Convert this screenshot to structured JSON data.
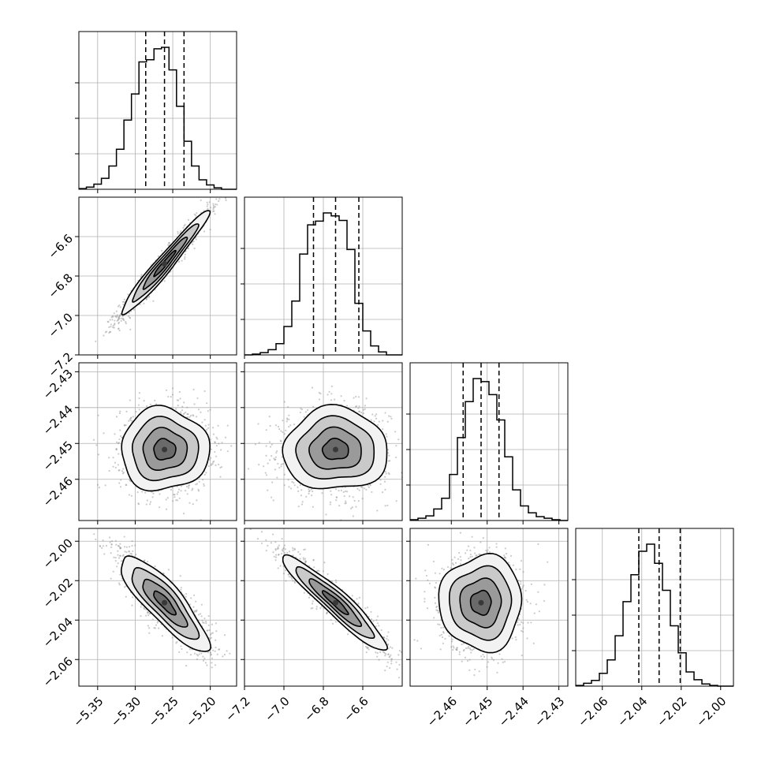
{
  "chart_data": {
    "type": "corner",
    "dimensions": 4,
    "parameters": [
      {
        "range": [
          -5.375,
          -5.165
        ],
        "ticks": [
          -5.35,
          -5.3,
          -5.25,
          -5.2
        ],
        "tick_labels": [
          "−5.35",
          "−5.30",
          "−5.25",
          "−5.20"
        ],
        "quantiles": [
          -5.286,
          -5.261,
          -5.235
        ],
        "hist_bin_start": -5.375,
        "hist_bin_width": 0.01,
        "hist_counts": [
          1,
          3,
          7,
          15,
          32,
          55,
          95,
          131,
          175,
          178,
          193,
          195,
          164,
          114,
          66,
          32,
          13,
          6,
          2,
          0,
          0
        ]
      },
      {
        "range": [
          -7.2,
          -6.4
        ],
        "ticks": [
          -7.2,
          -7.0,
          -6.8,
          -6.6
        ],
        "tick_labels": [
          "−7.2",
          "−7.0",
          "−6.8",
          "−6.6"
        ],
        "quantiles": [
          -6.85,
          -6.738,
          -6.62
        ],
        "hist_bin_start": -7.2,
        "hist_bin_width": 0.04,
        "hist_counts": [
          0,
          1,
          3,
          7,
          15,
          38,
          72,
          135,
          174,
          179,
          190,
          186,
          180,
          141,
          69,
          32,
          12,
          4,
          0,
          0
        ]
      },
      {
        "range": [
          -2.4715,
          -2.4275
        ],
        "ticks": [
          -2.46,
          -2.45,
          -2.44,
          -2.43
        ],
        "tick_labels": [
          "−2.46",
          "−2.45",
          "−2.44",
          "−2.43"
        ],
        "quantiles": [
          -2.4567,
          -2.4517,
          -2.4467
        ],
        "hist_bin_start": -2.4715,
        "hist_bin_width": 0.0022,
        "hist_counts": [
          1,
          3,
          6,
          15,
          29,
          60,
          108,
          155,
          185,
          181,
          164,
          131,
          83,
          40,
          19,
          10,
          5,
          3,
          1,
          0
        ]
      },
      {
        "range": [
          -2.0735,
          -1.9935
        ],
        "ticks": [
          -2.06,
          -2.04,
          -2.02,
          -2.0
        ],
        "tick_labels": [
          "−2.06",
          "−2.04",
          "−2.02",
          "−2.00"
        ],
        "quantiles": [
          -2.0415,
          -2.0312,
          -2.0205
        ],
        "hist_bin_start": -2.0735,
        "hist_bin_width": 0.004,
        "hist_counts": [
          1,
          4,
          8,
          18,
          37,
          71,
          119,
          157,
          190,
          200,
          173,
          135,
          85,
          47,
          20,
          9,
          3,
          1,
          0,
          0
        ]
      }
    ],
    "correlations": [
      [
        1,
        0.97,
        0,
        -0.85
      ],
      [
        0.97,
        1,
        0,
        -0.94
      ],
      [
        0,
        0,
        1,
        0
      ],
      [
        -0.85,
        -0.94,
        0,
        1
      ]
    ],
    "contour_levels_sigma": [
      0.5,
      1.0,
      1.5,
      2.0
    ],
    "grid": true,
    "colors": {
      "line": "#000000",
      "grid": "#b0b0b0",
      "scatter": "#8c8c8c",
      "density_fill": [
        "#f2f2f2",
        "#c9c9c9",
        "#9a9a9a",
        "#6a6a6a",
        "#383838"
      ]
    }
  }
}
